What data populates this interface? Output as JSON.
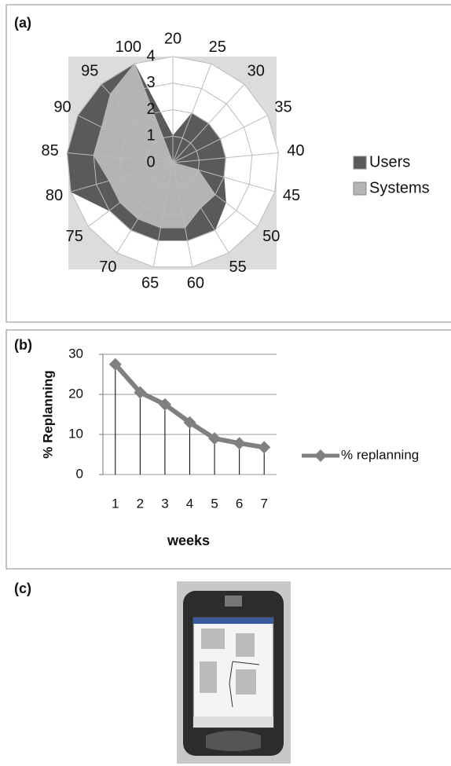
{
  "panel_labels": [
    "(a)",
    "(b)",
    "(c)"
  ],
  "chart_data": [
    {
      "type": "radar",
      "categories": [
        "20",
        "25",
        "30",
        "35",
        "40",
        "45",
        "50",
        "55",
        "60",
        "65",
        "70",
        "75",
        "80",
        "85",
        "90",
        "95",
        "100"
      ],
      "series": [
        {
          "name": "Users",
          "color": "#5a5a5a",
          "values": [
            1,
            2,
            2,
            2,
            2,
            2,
            2.5,
            3,
            3,
            3,
            3,
            3,
            4,
            4,
            4,
            4,
            4
          ]
        },
        {
          "name": "Systems",
          "color": "#b4b4b4",
          "values": [
            0,
            0,
            0,
            0,
            0,
            1,
            2,
            2,
            2.5,
            2.5,
            2.5,
            2.5,
            2.5,
            3,
            3,
            3.5,
            4
          ]
        }
      ],
      "ylim": [
        0,
        4
      ],
      "yticks": [
        0,
        1,
        2,
        3,
        4
      ],
      "grid": true,
      "legend": "right"
    },
    {
      "type": "line",
      "categories": [
        "1",
        "2",
        "3",
        "4",
        "5",
        "6",
        "7"
      ],
      "series": [
        {
          "name": "% replanning",
          "color": "#808080",
          "values": [
            27.5,
            20.5,
            17.5,
            13,
            9,
            7.8,
            6.8
          ]
        }
      ],
      "ylabel": "% Replanning",
      "xlabel": "weeks",
      "ylim": [
        0,
        30
      ],
      "yticks": [
        0,
        10,
        20,
        30
      ],
      "grid": true,
      "drop_lines": true,
      "legend": "right"
    }
  ]
}
